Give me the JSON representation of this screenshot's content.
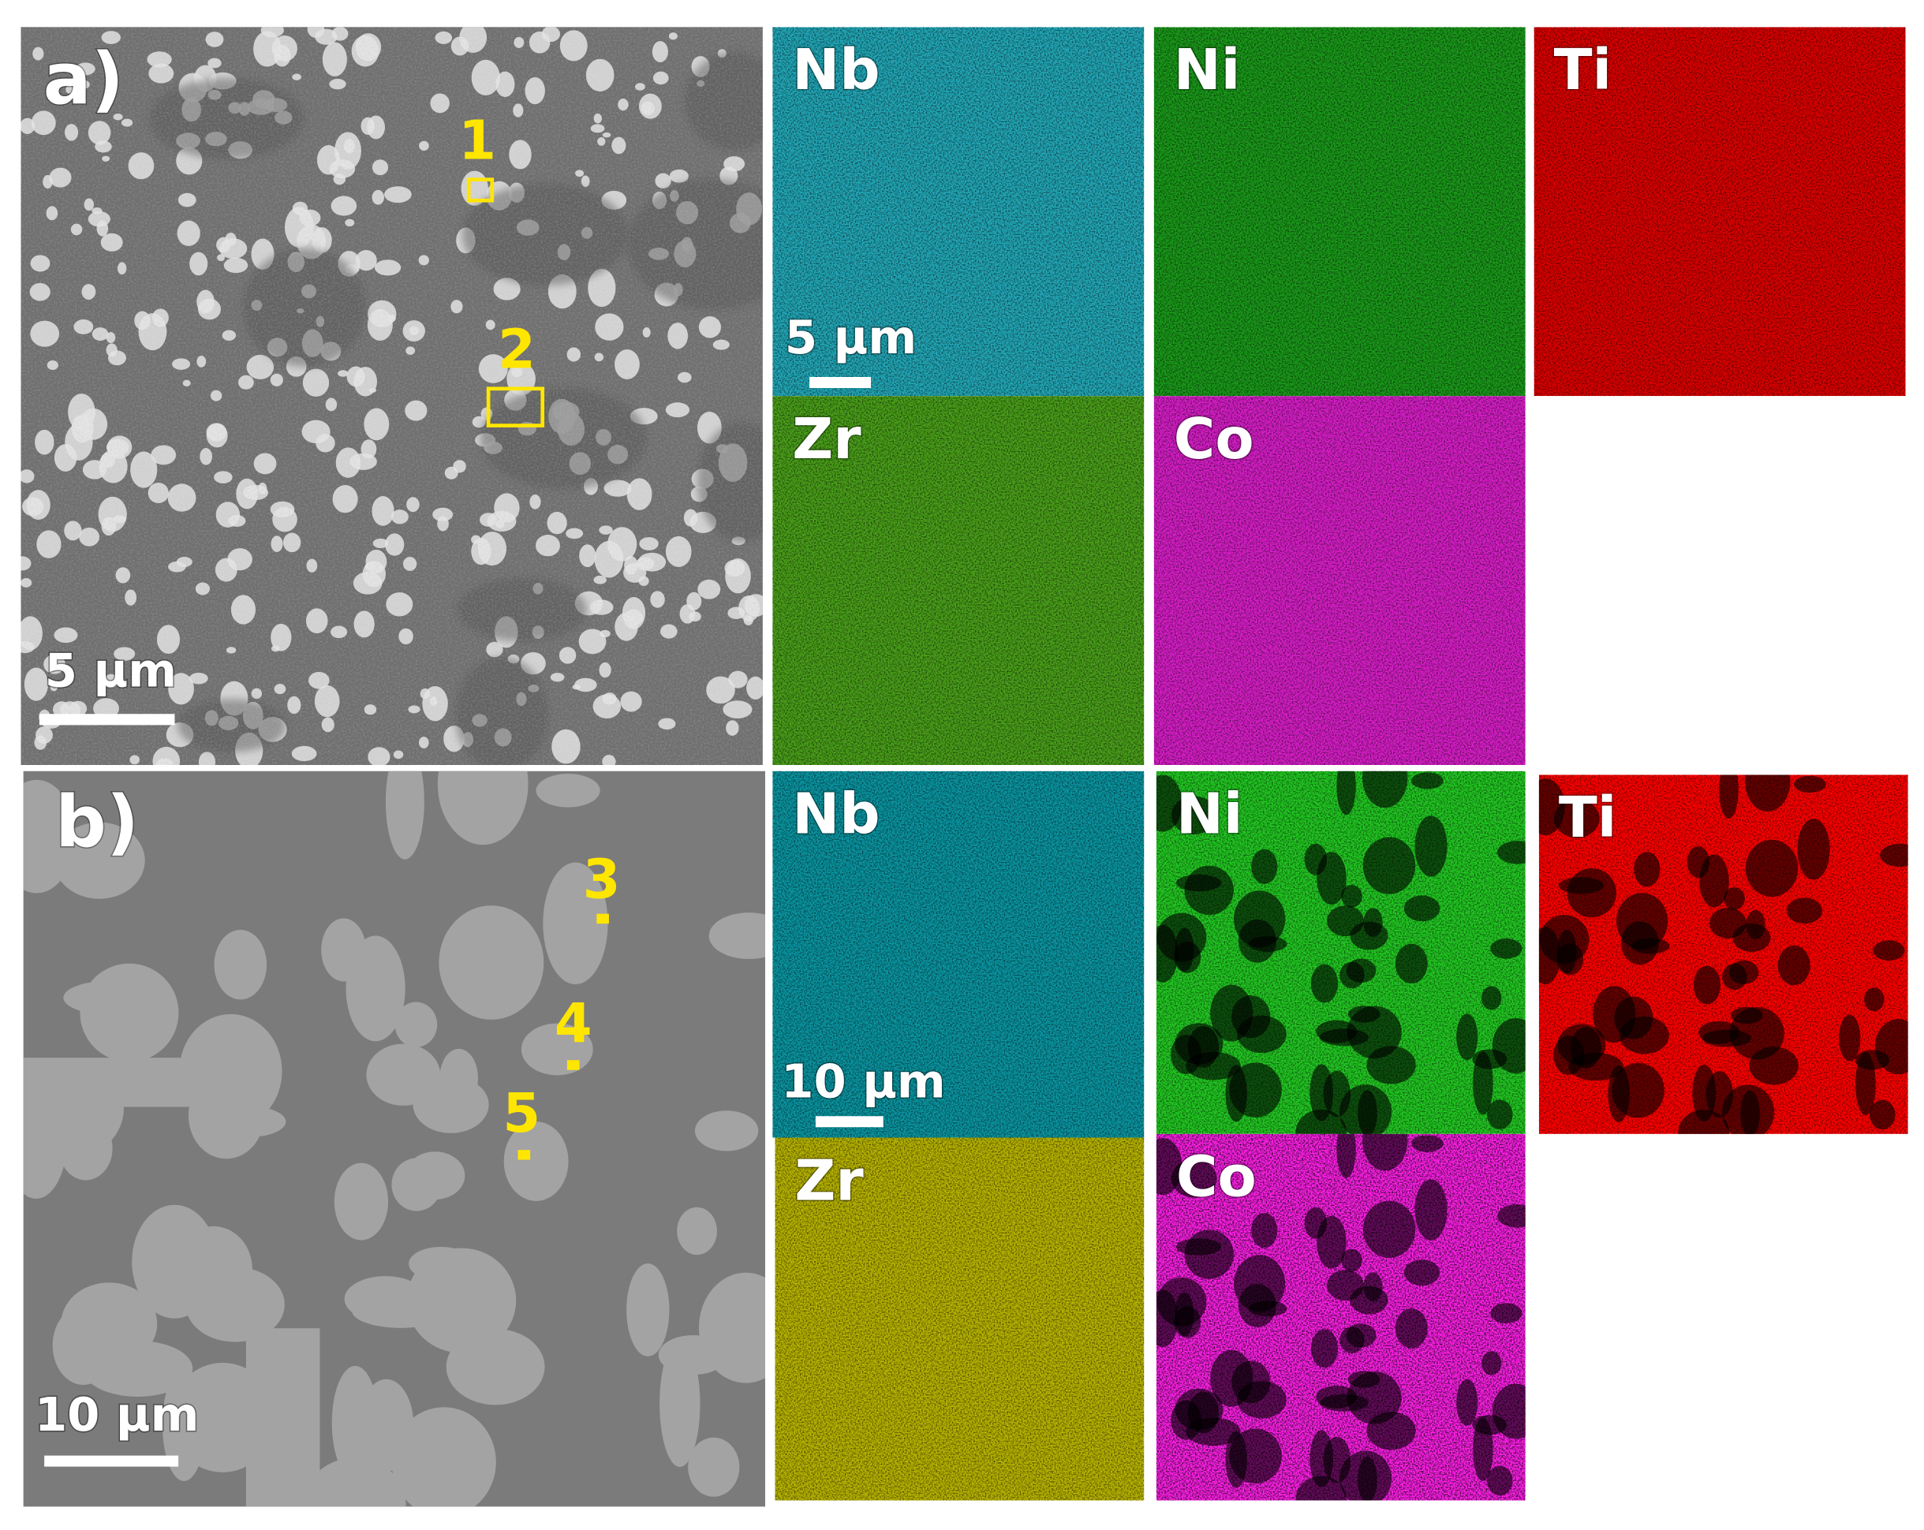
{
  "panels": [
    {
      "label": "a)",
      "scale_bar": "5 μm",
      "points": [
        "1",
        "2"
      ],
      "maps": [
        "Nb",
        "Ni",
        "Ti",
        "Zr",
        "Co"
      ],
      "map_scale_bar": "5 μm"
    },
    {
      "label": "b)",
      "scale_bar": "10 μm",
      "points": [
        "3",
        "4",
        "5"
      ],
      "maps": [
        "Nb",
        "Ni",
        "Ti",
        "Zr",
        "Co"
      ],
      "map_scale_bar": "10 μm"
    }
  ]
}
